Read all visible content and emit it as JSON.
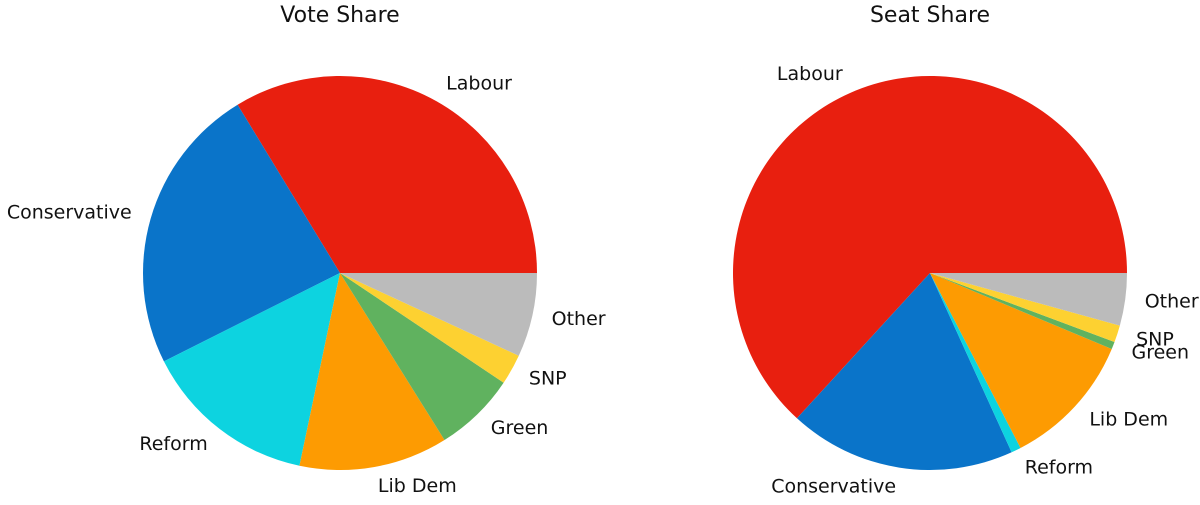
{
  "chart_data": [
    {
      "type": "pie",
      "title": "Vote Share",
      "categories": [
        "Labour",
        "Conservative",
        "Reform",
        "Lib Dem",
        "Green",
        "SNP",
        "Other"
      ],
      "values": [
        33.7,
        23.7,
        14.3,
        12.2,
        6.7,
        2.5,
        6.9
      ],
      "colors": [
        "#e81f0f",
        "#0a74c9",
        "#0dd3e0",
        "#fd9b02",
        "#60b25f",
        "#fdd131",
        "#bbbbbb"
      ]
    },
    {
      "type": "pie",
      "title": "Seat Share",
      "categories": [
        "Labour",
        "Conservative",
        "Reform",
        "Lib Dem",
        "Green",
        "SNP",
        "Other"
      ],
      "values": [
        63.2,
        18.6,
        0.8,
        11.1,
        0.6,
        1.4,
        4.3
      ],
      "colors": [
        "#e81f0f",
        "#0a74c9",
        "#0dd3e0",
        "#fd9b02",
        "#60b25f",
        "#fdd131",
        "#bbbbbb"
      ]
    }
  ]
}
